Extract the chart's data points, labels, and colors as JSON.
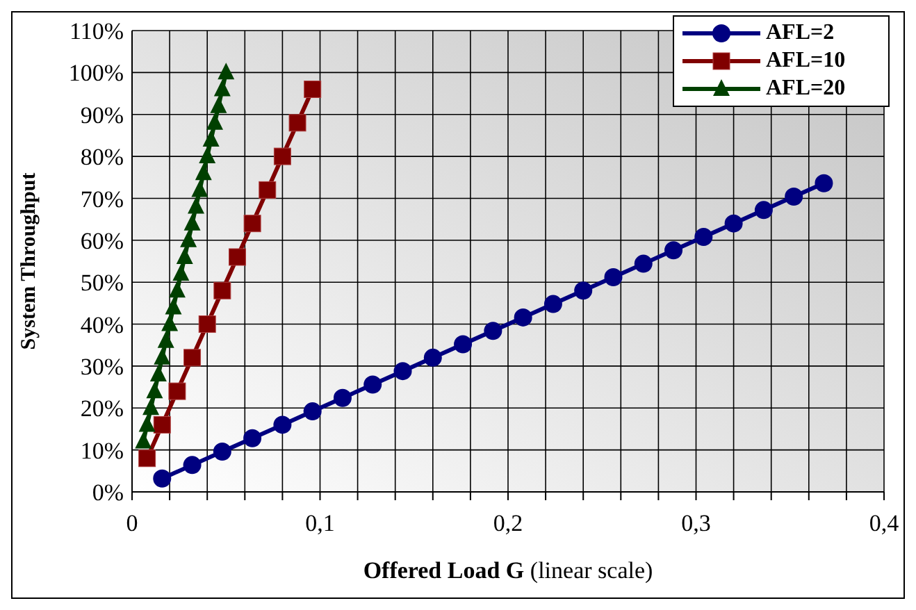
{
  "chart_data": {
    "type": "line",
    "xlabel": "Offered Load G (linear scale)",
    "ylabel": "System Throughput",
    "series": [
      {
        "name": "AFL=2",
        "color": "#000080",
        "marker": "circle",
        "x": [
          0.016,
          0.032,
          0.048,
          0.064,
          0.08,
          0.096,
          0.112,
          0.128,
          0.144,
          0.16,
          0.176,
          0.192,
          0.208,
          0.224,
          0.24,
          0.256,
          0.272,
          0.288,
          0.304,
          0.32,
          0.336,
          0.352,
          0.368
        ],
        "values": [
          3.2,
          6.4,
          9.6,
          12.8,
          16,
          19.2,
          22.4,
          25.6,
          28.8,
          32,
          35.2,
          38.4,
          41.6,
          44.8,
          48,
          51.2,
          54.4,
          57.6,
          60.8,
          64,
          67.2,
          70.4,
          73.6
        ]
      },
      {
        "name": "AFL=10",
        "color": "#800000",
        "marker": "square",
        "x": [
          0.008,
          0.016,
          0.024,
          0.032,
          0.04,
          0.048,
          0.056,
          0.064,
          0.072,
          0.08,
          0.088,
          0.096
        ],
        "values": [
          8,
          16,
          24,
          32,
          40,
          48,
          56,
          64,
          72,
          80,
          88,
          96
        ]
      },
      {
        "name": "AFL=20",
        "color": "#004000",
        "marker": "triangle",
        "x": [
          0.006,
          0.008,
          0.01,
          0.012,
          0.014,
          0.016,
          0.018,
          0.02,
          0.022,
          0.024,
          0.026,
          0.028,
          0.03,
          0.032,
          0.034,
          0.036,
          0.038,
          0.04,
          0.042,
          0.044,
          0.046,
          0.048,
          0.05
        ],
        "values": [
          12,
          16,
          20,
          24,
          28,
          32,
          36,
          40,
          44,
          48,
          52,
          56,
          60,
          64,
          68,
          72,
          76,
          80,
          84,
          88,
          92,
          96,
          100
        ]
      }
    ],
    "xlim": [
      0,
      0.4
    ],
    "xticks": [
      {
        "value": 0,
        "label": "0"
      },
      {
        "value": 0.02,
        "label": null
      },
      {
        "value": 0.04,
        "label": null
      },
      {
        "value": 0.06,
        "label": null
      },
      {
        "value": 0.08,
        "label": null
      },
      {
        "value": 0.1,
        "label": "0,1"
      },
      {
        "value": 0.12,
        "label": null
      },
      {
        "value": 0.14,
        "label": null
      },
      {
        "value": 0.16,
        "label": null
      },
      {
        "value": 0.18,
        "label": null
      },
      {
        "value": 0.2,
        "label": "0,2"
      },
      {
        "value": 0.22,
        "label": null
      },
      {
        "value": 0.24,
        "label": null
      },
      {
        "value": 0.26,
        "label": null
      },
      {
        "value": 0.28,
        "label": null
      },
      {
        "value": 0.3,
        "label": "0,3"
      },
      {
        "value": 0.32,
        "label": null
      },
      {
        "value": 0.34,
        "label": null
      },
      {
        "value": 0.36,
        "label": null
      },
      {
        "value": 0.38,
        "label": null
      },
      {
        "value": 0.4,
        "label": "0,4"
      }
    ],
    "ylim": [
      0,
      110
    ],
    "yticks": [
      {
        "value": 0,
        "label": "0%"
      },
      {
        "value": 10,
        "label": "10%"
      },
      {
        "value": 20,
        "label": "20%"
      },
      {
        "value": 30,
        "label": "30%"
      },
      {
        "value": 40,
        "label": "40%"
      },
      {
        "value": 50,
        "label": "50%"
      },
      {
        "value": 60,
        "label": "60%"
      },
      {
        "value": 70,
        "label": "70%"
      },
      {
        "value": 80,
        "label": "80%"
      },
      {
        "value": 90,
        "label": "90%"
      },
      {
        "value": 100,
        "label": "100%"
      },
      {
        "value": 110,
        "label": "110%"
      }
    ],
    "grid": true,
    "legend": "top right",
    "line_style": "solid"
  }
}
